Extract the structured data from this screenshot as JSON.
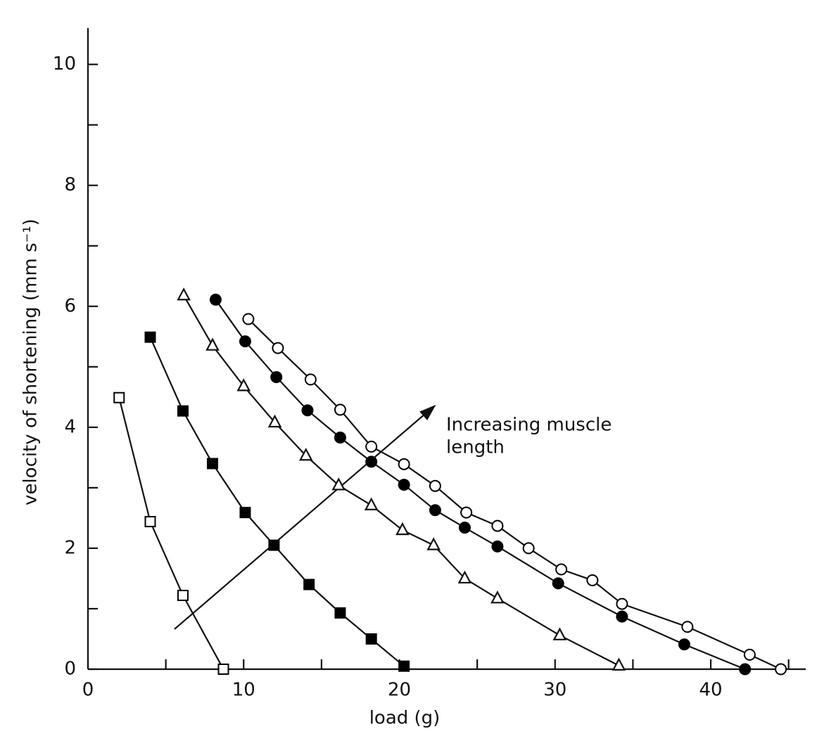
{
  "chart_data": {
    "type": "line",
    "x_label": "load (g)",
    "y_label": "velocity of shortening (mm s⁻¹)",
    "xlim": [
      0,
      46.1
    ],
    "ylim": [
      0,
      10.6
    ],
    "xticks": [
      0,
      10,
      20,
      30,
      40
    ],
    "yticks": [
      0,
      2,
      4,
      6,
      8,
      10
    ],
    "x_minor_ticks": [
      5,
      15,
      25,
      35,
      45
    ],
    "y_minor_ticks": [
      1,
      3,
      5,
      7,
      9
    ],
    "grid": false,
    "annotation_lines": [
      "Increasing muscle",
      "length"
    ],
    "series": [
      {
        "marker": "open-square",
        "color": "#000000",
        "x": [
          2.0,
          4.0,
          6.1,
          8.7
        ],
        "values": [
          4.49,
          2.44,
          1.22,
          0
        ]
      },
      {
        "marker": "filled-square",
        "color": "#000000",
        "x": [
          4.0,
          6.1,
          8.0,
          10.1,
          11.95,
          14.2,
          16.2,
          18.2,
          20.3
        ],
        "values": [
          5.49,
          4.27,
          3.4,
          2.59,
          2.05,
          1.4,
          0.93,
          0.5,
          0.05
        ]
      },
      {
        "marker": "open-triangle",
        "color": "#000000",
        "x": [
          6.15,
          8.0,
          10.0,
          12.0,
          14.0,
          16.1,
          18.2,
          20.2,
          22.2,
          24.2,
          26.3,
          30.3,
          34.1
        ],
        "values": [
          6.18,
          5.35,
          4.68,
          4.08,
          3.53,
          3.04,
          2.71,
          2.3,
          2.05,
          1.5,
          1.17,
          0.56,
          0.06
        ]
      },
      {
        "marker": "filled-circle",
        "color": "#000000",
        "x": [
          8.2,
          10.1,
          12.1,
          14.1,
          16.2,
          18.2,
          20.3,
          22.3,
          24.2,
          26.3,
          30.2,
          34.3,
          38.3,
          42.2
        ],
        "values": [
          6.11,
          5.42,
          4.83,
          4.28,
          3.83,
          3.43,
          3.05,
          2.63,
          2.34,
          2.03,
          1.42,
          0.87,
          0.41,
          0
        ]
      },
      {
        "marker": "open-circle",
        "color": "#000000",
        "x": [
          10.3,
          12.2,
          14.3,
          16.2,
          18.2,
          20.3,
          22.3,
          24.3,
          26.3,
          28.3,
          30.4,
          32.4,
          34.3,
          38.5,
          42.5,
          44.5
        ],
        "values": [
          5.79,
          5.31,
          4.79,
          4.29,
          3.68,
          3.39,
          3.03,
          2.59,
          2.37,
          2.0,
          1.65,
          1.47,
          1.08,
          0.7,
          0.24,
          0
        ]
      }
    ]
  }
}
